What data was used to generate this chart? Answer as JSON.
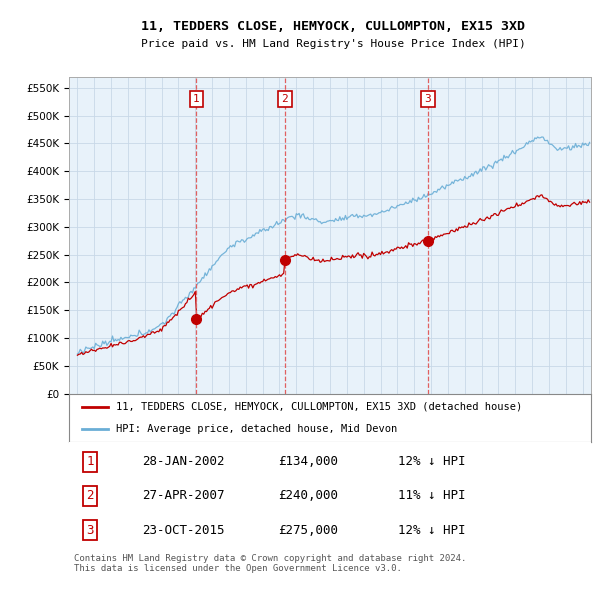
{
  "title": "11, TEDDERS CLOSE, HEMYOCK, CULLOMPTON, EX15 3XD",
  "subtitle": "Price paid vs. HM Land Registry's House Price Index (HPI)",
  "hpi_label": "HPI: Average price, detached house, Mid Devon",
  "property_label": "11, TEDDERS CLOSE, HEMYOCK, CULLOMPTON, EX15 3XD (detached house)",
  "transactions": [
    {
      "num": 1,
      "date": "28-JAN-2002",
      "price": 134000,
      "pct": "12%",
      "dir": "↓"
    },
    {
      "num": 2,
      "date": "27-APR-2007",
      "price": 240000,
      "pct": "11%",
      "dir": "↓"
    },
    {
      "num": 3,
      "date": "23-OCT-2015",
      "price": 275000,
      "pct": "12%",
      "dir": "↓"
    }
  ],
  "transaction_years": [
    2002.07,
    2007.32,
    2015.81
  ],
  "transaction_prices": [
    134000,
    240000,
    275000
  ],
  "footer": "Contains HM Land Registry data © Crown copyright and database right 2024.\nThis data is licensed under the Open Government Licence v3.0.",
  "hpi_color": "#6aaed6",
  "property_color": "#c00000",
  "ylim": [
    0,
    570000
  ],
  "yticks": [
    0,
    50000,
    100000,
    150000,
    200000,
    250000,
    300000,
    350000,
    400000,
    450000,
    500000,
    550000
  ],
  "xlim_start": 1994.5,
  "xlim_end": 2025.5,
  "grid_color": "#c8d8e8",
  "background_color": "#ffffff",
  "plot_bg_color": "#e8f2fa",
  "vline_color": "#e06060",
  "seed": 12345
}
